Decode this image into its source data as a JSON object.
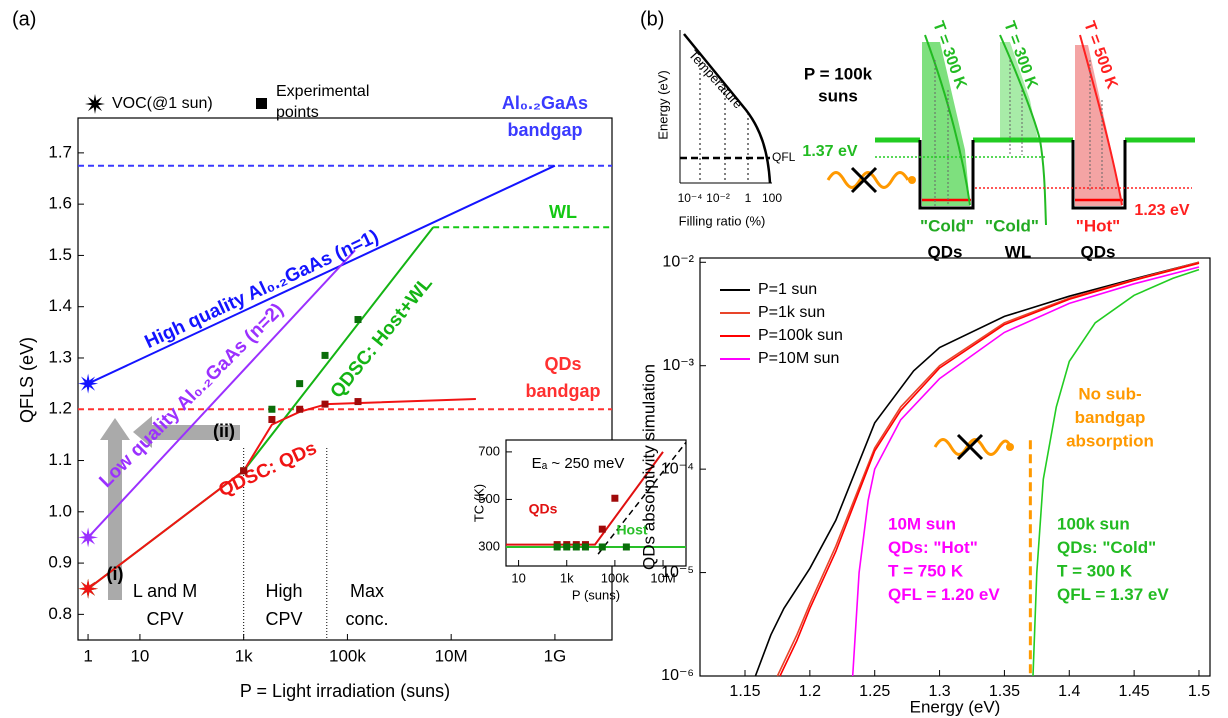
{
  "panel_labels": [
    "(a)",
    "(b)"
  ],
  "chart_data": [
    {
      "type": "line",
      "xlabel": "P = Light irradiation (suns)",
      "ylabel": "QFLS (eV)",
      "xscale": "log",
      "xlim": [
        0.64,
        12600000000
      ],
      "ylim": [
        0.75,
        1.768
      ],
      "xticks": [
        1,
        10,
        {
          "value": 1000,
          "label": "1k"
        },
        {
          "value": 100000,
          "label": "100k"
        },
        {
          "value": 10000000,
          "label": "10M"
        },
        {
          "value": 1000000000,
          "label": "1G"
        }
      ],
      "yticks": [
        0.8,
        0.9,
        {
          "value": 1,
          "label": "1.0"
        },
        1.1,
        1.2,
        1.3,
        1.4,
        1.5,
        1.6,
        1.7
      ],
      "series": [
        {
          "name": "High quality Al₀.₂GaAs (n=1)",
          "color": "#1414ff",
          "x": [
            1,
            1000000000
          ],
          "values": [
            1.25,
            1.675
          ]
        },
        {
          "name": "Low quality Al₀.₂GaAs (n=2)",
          "color": "#9b30ff",
          "x": [
            1,
            140000
          ],
          "values": [
            0.95,
            1.51
          ]
        },
        {
          "name": "QDSC: Host+WL",
          "color": "#14b414",
          "x": [
            1,
            1000,
            4500000
          ],
          "values": [
            0.85,
            1.08,
            1.555
          ]
        },
        {
          "name": "QDSC: QDs",
          "color": "#f01414",
          "x": [
            1,
            1000,
            3500,
            12000,
            40000,
            30000000
          ],
          "values": [
            0.85,
            1.08,
            1.17,
            1.195,
            1.21,
            1.22
          ]
        }
      ],
      "reference_lines": [
        {
          "label": [
            "Al₀.₂GaAs",
            "bandgap"
          ],
          "color": "#3a3aff",
          "value": 1.675
        },
        {
          "label": [
            "QDs",
            "bandgap"
          ],
          "color": "#ff3030",
          "value": 1.2
        },
        {
          "label": [
            "WL"
          ],
          "color": "#14c814",
          "value": 1.555,
          "from": 4500000
        }
      ],
      "voc": {
        "label": "VOC(@1 sun)",
        "x": 1,
        "values": [
          1.25,
          0.95,
          0.85,
          0.85
        ],
        "colors": [
          "#1414ff",
          "#9b30ff",
          "#14b414",
          "#f01414"
        ]
      },
      "experimental": {
        "label": [
          "Experimental",
          "points"
        ],
        "series": [
          {
            "color": "#0a6e0a",
            "x": [
              1000,
              3500,
              12000,
              37000,
              160000
            ],
            "values": [
              1.08,
              1.2,
              1.25,
              1.305,
              1.375
            ]
          },
          {
            "color": "#a00a0a",
            "x": [
              1000,
              3500,
              12000,
              37000,
              160000
            ],
            "values": [
              1.08,
              1.18,
              1.2,
              1.21,
              1.215
            ]
          }
        ]
      },
      "regions": {
        "bounds": [
          1000,
          40000
        ],
        "labels": [
          [
            "L and M",
            "CPV"
          ],
          [
            "High",
            "CPV"
          ],
          [
            "Max",
            "conc."
          ]
        ]
      },
      "arrows": [
        "(i)",
        "(ii)"
      ]
    },
    {
      "type": "line",
      "xlabel": "P (suns)",
      "ylabel": "TC (K)",
      "xscale": "log",
      "xlim": [
        3,
        90000000
      ],
      "ylim": [
        220,
        750
      ],
      "xticks": [
        10,
        {
          "value": 1000,
          "label": "1k"
        },
        {
          "value": 100000,
          "label": "100k"
        },
        {
          "value": 10000000,
          "label": "10M"
        }
      ],
      "yticks": [
        300,
        500,
        700
      ],
      "annotation": "Eₐ ~ 250 meV",
      "series": [
        {
          "name": "QDs",
          "color": "#e01010",
          "x": [
            3,
            15000,
            10000000
          ],
          "values": [
            310,
            310,
            700
          ]
        },
        {
          "name": "Host",
          "color": "#28c028",
          "x": [
            3,
            90000000
          ],
          "values": [
            300,
            300
          ]
        },
        {
          "color": "#000000",
          "dash": true,
          "x": [
            20000,
            90000000
          ],
          "values": [
            270,
            740
          ]
        }
      ],
      "points": [
        {
          "color": "#a00a0a",
          "x": [
            400,
            1000,
            2500,
            6000,
            30000,
            100000
          ],
          "values": [
            310,
            310,
            310,
            310,
            375,
            505
          ]
        },
        {
          "color": "#0a6e0a",
          "x": [
            400,
            1000,
            2500,
            6000,
            30000,
            300000
          ],
          "values": [
            300,
            300,
            300,
            300,
            300,
            300
          ]
        }
      ]
    },
    {
      "type": "line",
      "xlabel": "Energy (eV)",
      "ylabel": "QDs absorptivity simulation",
      "yscale": "log",
      "xlim": [
        1.1153,
        1.5085
      ],
      "ylim": [
        1e-06,
        0.011
      ],
      "xticks": [
        1.15,
        1.2,
        1.25,
        1.3,
        1.35,
        1.4,
        1.45,
        1.5
      ],
      "yticks": [
        {
          "value": 1e-06,
          "label": "10⁻⁶"
        },
        {
          "value": 1e-05,
          "label": "10⁻⁵"
        },
        {
          "value": 0.0001,
          "label": "10⁻⁴"
        },
        {
          "value": 0.001,
          "label": "10⁻³"
        },
        {
          "value": 0.01,
          "label": "10⁻²"
        }
      ],
      "legend": "top-left",
      "series": [
        {
          "name": "P=1 sun",
          "color": "#000000",
          "x": [
            1.158,
            1.17,
            1.18,
            1.2,
            1.22,
            1.25,
            1.28,
            1.3,
            1.35,
            1.4,
            1.45,
            1.5
          ],
          "values": [
            1e-06,
            2.5e-06,
            4.5e-06,
            1.1e-05,
            3.2e-05,
            0.00028,
            0.00089,
            0.0015,
            0.003,
            0.0047,
            0.0069,
            0.01
          ]
        },
        {
          "name": "P=1k sun",
          "color": "#e8452a",
          "x": [
            1.175,
            1.19,
            1.2,
            1.22,
            1.25,
            1.27,
            1.3,
            1.35,
            1.4,
            1.45,
            1.5
          ],
          "values": [
            1e-06,
            2.5e-06,
            5e-06,
            1.8e-05,
            0.00016,
            0.0004,
            0.001,
            0.0026,
            0.0045,
            0.0068,
            0.01
          ]
        },
        {
          "name": "P=100k sun",
          "color": "#ff0000",
          "x": [
            1.177,
            1.19,
            1.2,
            1.22,
            1.25,
            1.27,
            1.3,
            1.35,
            1.4,
            1.45,
            1.5
          ],
          "values": [
            1e-06,
            2.2e-06,
            4.5e-06,
            1.6e-05,
            0.00015,
            0.00037,
            0.00095,
            0.0025,
            0.0044,
            0.0067,
            0.0098
          ]
        },
        {
          "name": "P=10M sun",
          "color": "#ff00ff",
          "x": [
            1.233,
            1.238,
            1.245,
            1.25,
            1.27,
            1.3,
            1.35,
            1.4,
            1.45,
            1.5
          ],
          "values": [
            1e-06,
            1e-05,
            5e-05,
            0.0001,
            0.0003,
            0.00075,
            0.0021,
            0.004,
            0.0062,
            0.009
          ]
        },
        {
          "color": "#22cc22",
          "x": [
            1.372,
            1.375,
            1.38,
            1.39,
            1.4,
            1.42,
            1.45,
            1.48,
            1.5
          ],
          "values": [
            1e-06,
            1e-05,
            8e-05,
            0.0004,
            0.0011,
            0.0026,
            0.0048,
            0.007,
            0.0085
          ]
        }
      ],
      "vline": {
        "x": 1.37,
        "top": 0.00019,
        "color": "#ff9900"
      },
      "annotations": {
        "no_absorption": {
          "color": "#ff9900",
          "lines": [
            "No sub-",
            "bandgap",
            "absorption"
          ]
        },
        "hot": {
          "color": "#ff00ff",
          "lines": [
            "10M sun",
            "QDs: \"Hot\"",
            "T = 750 K",
            "QFL = 1.20 eV"
          ]
        },
        "cold": {
          "color": "#22bb22",
          "lines": [
            "100k sun",
            "QDs: \"Cold\"",
            "T = 300 K",
            "QFL = 1.37 eV"
          ]
        }
      }
    }
  ],
  "diagram": {
    "ylabel": "Energy (eV)",
    "xlabel": "Filling ratio (%)",
    "curve_label": "Temperature",
    "qfl": "QFL",
    "xtick_labels": [
      "10⁻⁴",
      "10⁻²",
      "1",
      "100"
    ],
    "power": [
      "P = 100k",
      "suns"
    ],
    "temperatures": [
      "T = 300 K",
      "T = 300 K",
      "T = 500 K"
    ],
    "levels": [
      "1.37 eV",
      "1.23 eV"
    ],
    "states": [
      "\"Cold\"",
      "\"Cold\"",
      "\"Hot\""
    ],
    "regions": [
      "QDs",
      "WL",
      "QDs"
    ]
  }
}
